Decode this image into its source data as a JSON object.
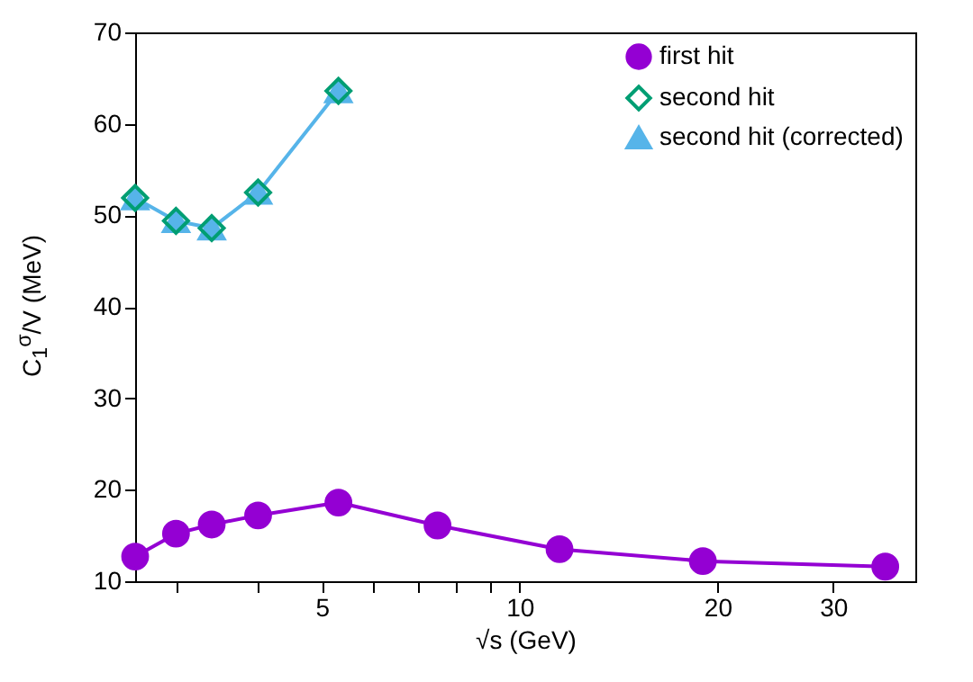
{
  "chart_data": {
    "type": "line",
    "xlabel": "√s (GeV)",
    "ylabel": "C$_{1}$$^{σ}$/V (MeV)",
    "log": "x",
    "grid": false,
    "legend": "top right",
    "line_style": "solid",
    "xlim": [
      2.6,
      40
    ],
    "xticks": [
      {
        "value": 3,
        "label": null
      },
      {
        "value": 4,
        "label": null
      },
      5,
      {
        "value": 6,
        "label": null
      },
      {
        "value": 7,
        "label": null
      },
      {
        "value": 8,
        "label": null
      },
      {
        "value": 9,
        "label": null
      },
      10,
      20,
      30
    ],
    "ylim": [
      10,
      70
    ],
    "yticks": [
      10,
      20,
      30,
      40,
      50,
      60,
      70
    ],
    "series": [
      {
        "name": "first hit",
        "type": "line",
        "marker": "circle",
        "color": "#9400d3",
        "x": [
          2.6,
          3.0,
          3.4,
          4.0,
          5.3,
          7.5,
          11.5,
          19,
          36
        ],
        "values": [
          12.7,
          15.2,
          16.2,
          17.2,
          18.6,
          16.1,
          13.5,
          12.2,
          11.6
        ]
      },
      {
        "name": "second hit",
        "type": "scatter",
        "marker": "diamond",
        "color": "#009e73",
        "x": [
          2.6,
          3.0,
          3.4,
          4.0,
          5.3
        ],
        "values": [
          51.9,
          49.4,
          48.6,
          52.5,
          63.6
        ]
      },
      {
        "name": "second hit (corrected)",
        "type": "line",
        "marker": "triangle",
        "color": "#56b4e9",
        "x": [
          2.6,
          3.0,
          3.4,
          4.0,
          5.3
        ],
        "values": [
          51.9,
          49.4,
          48.6,
          52.5,
          63.6
        ]
      }
    ]
  }
}
